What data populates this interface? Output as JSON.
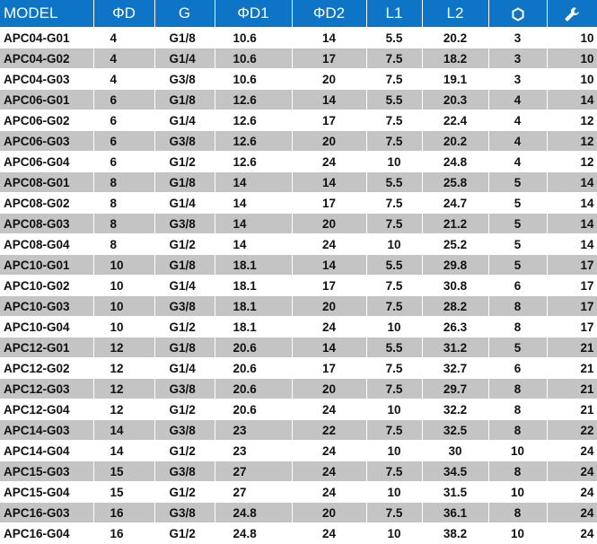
{
  "columns": {
    "model": "MODEL",
    "d": "ΦD",
    "g": "G",
    "d1": "ΦD1",
    "d2": "ΦD2",
    "l1": "L1",
    "l2": "L2",
    "hex_icon": "hexagon-icon",
    "wrench_icon": "wrench-icon"
  },
  "colors": {
    "header": "#0d74c6",
    "shade": "#c4c4c4"
  },
  "rows": [
    [
      "APC04-G01",
      "4",
      "G1/8",
      "10.6",
      "14",
      "5.5",
      "20.2",
      "3",
      "10"
    ],
    [
      "APC04-G02",
      "4",
      "G1/4",
      "10.6",
      "17",
      "7.5",
      "18.2",
      "3",
      "10"
    ],
    [
      "APC04-G03",
      "4",
      "G3/8",
      "10.6",
      "20",
      "7.5",
      "19.1",
      "3",
      "10"
    ],
    [
      "APC06-G01",
      "6",
      "G1/8",
      "12.6",
      "14",
      "5.5",
      "20.3",
      "4",
      "14"
    ],
    [
      "APC06-G02",
      "6",
      "G1/4",
      "12.6",
      "17",
      "7.5",
      "22.4",
      "4",
      "12"
    ],
    [
      "APC06-G03",
      "6",
      "G3/8",
      "12.6",
      "20",
      "7.5",
      "20.2",
      "4",
      "12"
    ],
    [
      "APC06-G04",
      "6",
      "G1/2",
      "12.6",
      "24",
      "10",
      "24.8",
      "4",
      "12"
    ],
    [
      "APC08-G01",
      "8",
      "G1/8",
      "14",
      "14",
      "5.5",
      "25.8",
      "5",
      "14"
    ],
    [
      "APC08-G02",
      "8",
      "G1/4",
      "14",
      "17",
      "7.5",
      "24.7",
      "5",
      "14"
    ],
    [
      "APC08-G03",
      "8",
      "G3/8",
      "14",
      "20",
      "7.5",
      "21.2",
      "5",
      "14"
    ],
    [
      "APC08-G04",
      "8",
      "G1/2",
      "14",
      "24",
      "10",
      "25.2",
      "5",
      "14"
    ],
    [
      "APC10-G01",
      "10",
      "G1/8",
      "18.1",
      "14",
      "5.5",
      "29.8",
      "5",
      "17"
    ],
    [
      "APC10-G02",
      "10",
      "G1/4",
      "18.1",
      "17",
      "7.5",
      "30.8",
      "6",
      "17"
    ],
    [
      "APC10-G03",
      "10",
      "G3/8",
      "18.1",
      "20",
      "7.5",
      "28.2",
      "8",
      "17"
    ],
    [
      "APC10-G04",
      "10",
      "G1/2",
      "18.1",
      "24",
      "10",
      "26.3",
      "8",
      "17"
    ],
    [
      "APC12-G01",
      "12",
      "G1/8",
      "20.6",
      "14",
      "5.5",
      "31.2",
      "5",
      "21"
    ],
    [
      "APC12-G02",
      "12",
      "G1/4",
      "20.6",
      "17",
      "7.5",
      "32.7",
      "6",
      "21"
    ],
    [
      "APC12-G03",
      "12",
      "G3/8",
      "20.6",
      "20",
      "7.5",
      "29.7",
      "8",
      "21"
    ],
    [
      "APC12-G04",
      "12",
      "G1/2",
      "20.6",
      "24",
      "10",
      "32.2",
      "8",
      "21"
    ],
    [
      "APC14-G03",
      "14",
      "G3/8",
      "23",
      "22",
      "7.5",
      "32.5",
      "8",
      "22"
    ],
    [
      "APC14-G04",
      "14",
      "G1/2",
      "23",
      "24",
      "10",
      "30",
      "10",
      "24"
    ],
    [
      "APC15-G03",
      "15",
      "G3/8",
      "27",
      "24",
      "7.5",
      "34.5",
      "8",
      "24"
    ],
    [
      "APC15-G04",
      "15",
      "G1/2",
      "27",
      "24",
      "10",
      "31.5",
      "10",
      "24"
    ],
    [
      "APC16-G03",
      "16",
      "G3/8",
      "24.8",
      "20",
      "7.5",
      "36.1",
      "8",
      "24"
    ],
    [
      "APC16-G04",
      "16",
      "G1/2",
      "24.8",
      "24",
      "10",
      "38.2",
      "10",
      "24"
    ]
  ]
}
